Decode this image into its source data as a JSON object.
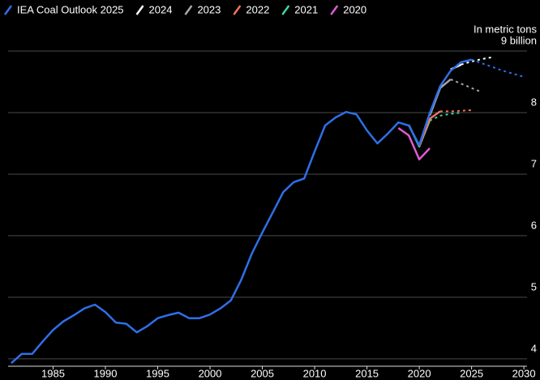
{
  "chart_data": {
    "type": "line",
    "y_unit": "In metric tons",
    "x": [
      1981,
      1982,
      1983,
      1984,
      1985,
      1986,
      1987,
      1988,
      1989,
      1990,
      1991,
      1992,
      1993,
      1994,
      1995,
      1996,
      1997,
      1998,
      1999,
      2000,
      2001,
      2002,
      2003,
      2004,
      2005,
      2006,
      2007,
      2008,
      2009,
      2010,
      2011,
      2012,
      2013,
      2014,
      2015,
      2016,
      2017,
      2018,
      2019,
      2020,
      2021,
      2022,
      2023,
      2024,
      2025,
      2026,
      2027,
      2028,
      2029,
      2030
    ],
    "series": [
      {
        "name": "IEA Coal Outlook 2025",
        "color": "#2f6fe8",
        "projection_from": 2025,
        "values": [
          3.93,
          4.08,
          4.08,
          4.28,
          4.47,
          4.61,
          4.71,
          4.82,
          4.88,
          4.76,
          4.59,
          4.57,
          4.43,
          4.53,
          4.66,
          4.71,
          4.75,
          4.66,
          4.66,
          4.72,
          4.82,
          4.95,
          5.29,
          5.71,
          6.05,
          6.38,
          6.71,
          6.87,
          6.93,
          7.37,
          7.79,
          7.92,
          8.01,
          7.97,
          7.71,
          7.5,
          7.66,
          7.84,
          7.79,
          7.47,
          7.99,
          8.43,
          8.68,
          8.82,
          8.86,
          8.8,
          8.74,
          8.68,
          8.63,
          8.58
        ]
      },
      {
        "name": "2024",
        "color": "#ffffff",
        "projection_from": 2024,
        "values": [
          null,
          null,
          null,
          null,
          null,
          null,
          null,
          null,
          null,
          null,
          null,
          null,
          null,
          null,
          null,
          null,
          null,
          null,
          null,
          null,
          null,
          null,
          null,
          null,
          null,
          null,
          null,
          null,
          null,
          null,
          null,
          null,
          null,
          null,
          null,
          null,
          null,
          null,
          null,
          null,
          null,
          null,
          8.7,
          8.78,
          8.83,
          8.87,
          8.9,
          null,
          null,
          null
        ]
      },
      {
        "name": "2023",
        "color": "#a6a6a6",
        "projection_from": 2023,
        "values": [
          null,
          null,
          null,
          null,
          null,
          null,
          null,
          null,
          null,
          null,
          null,
          null,
          null,
          null,
          null,
          null,
          null,
          null,
          null,
          null,
          null,
          null,
          null,
          null,
          null,
          null,
          null,
          null,
          null,
          null,
          null,
          null,
          null,
          null,
          null,
          null,
          null,
          null,
          null,
          null,
          7.95,
          8.4,
          8.54,
          8.47,
          8.4,
          8.33,
          null,
          null,
          null,
          null
        ]
      },
      {
        "name": "2022",
        "color": "#f0735a",
        "projection_from": 2022,
        "values": [
          null,
          null,
          null,
          null,
          null,
          null,
          null,
          null,
          null,
          null,
          null,
          null,
          null,
          null,
          null,
          null,
          null,
          null,
          null,
          null,
          null,
          null,
          null,
          null,
          null,
          null,
          null,
          null,
          null,
          null,
          null,
          null,
          null,
          null,
          null,
          null,
          null,
          null,
          null,
          7.45,
          7.9,
          8.02,
          8.02,
          8.03,
          8.04,
          null,
          null,
          null,
          null,
          null
        ]
      },
      {
        "name": "2021",
        "color": "#3dd6a0",
        "projection_from": 2021,
        "values": [
          null,
          null,
          null,
          null,
          null,
          null,
          null,
          null,
          null,
          null,
          null,
          null,
          null,
          null,
          null,
          null,
          null,
          null,
          null,
          null,
          null,
          null,
          null,
          null,
          null,
          null,
          null,
          null,
          null,
          null,
          null,
          null,
          null,
          null,
          null,
          null,
          null,
          null,
          7.8,
          7.45,
          7.87,
          7.95,
          7.98,
          8.0,
          null,
          null,
          null,
          null,
          null,
          null
        ]
      },
      {
        "name": "2020",
        "color": "#e05bd3",
        "values": [
          null,
          null,
          null,
          null,
          null,
          null,
          null,
          null,
          null,
          null,
          null,
          null,
          null,
          null,
          null,
          null,
          null,
          null,
          null,
          null,
          null,
          null,
          null,
          null,
          null,
          null,
          null,
          null,
          null,
          null,
          null,
          null,
          null,
          null,
          null,
          null,
          null,
          7.75,
          7.63,
          7.24,
          7.42,
          null,
          null,
          null,
          null,
          null,
          null,
          null,
          null,
          null
        ]
      }
    ],
    "xlim": [
      1980.7,
      2030.3
    ],
    "xticks": [
      1985,
      1990,
      1995,
      2000,
      2005,
      2010,
      2015,
      2020,
      2025,
      2030
    ],
    "ylim": [
      3.88,
      9.5
    ],
    "yticks": [
      4,
      5,
      6,
      7,
      8,
      {
        "value": 9,
        "label": "9 billion"
      }
    ],
    "grid": true
  }
}
